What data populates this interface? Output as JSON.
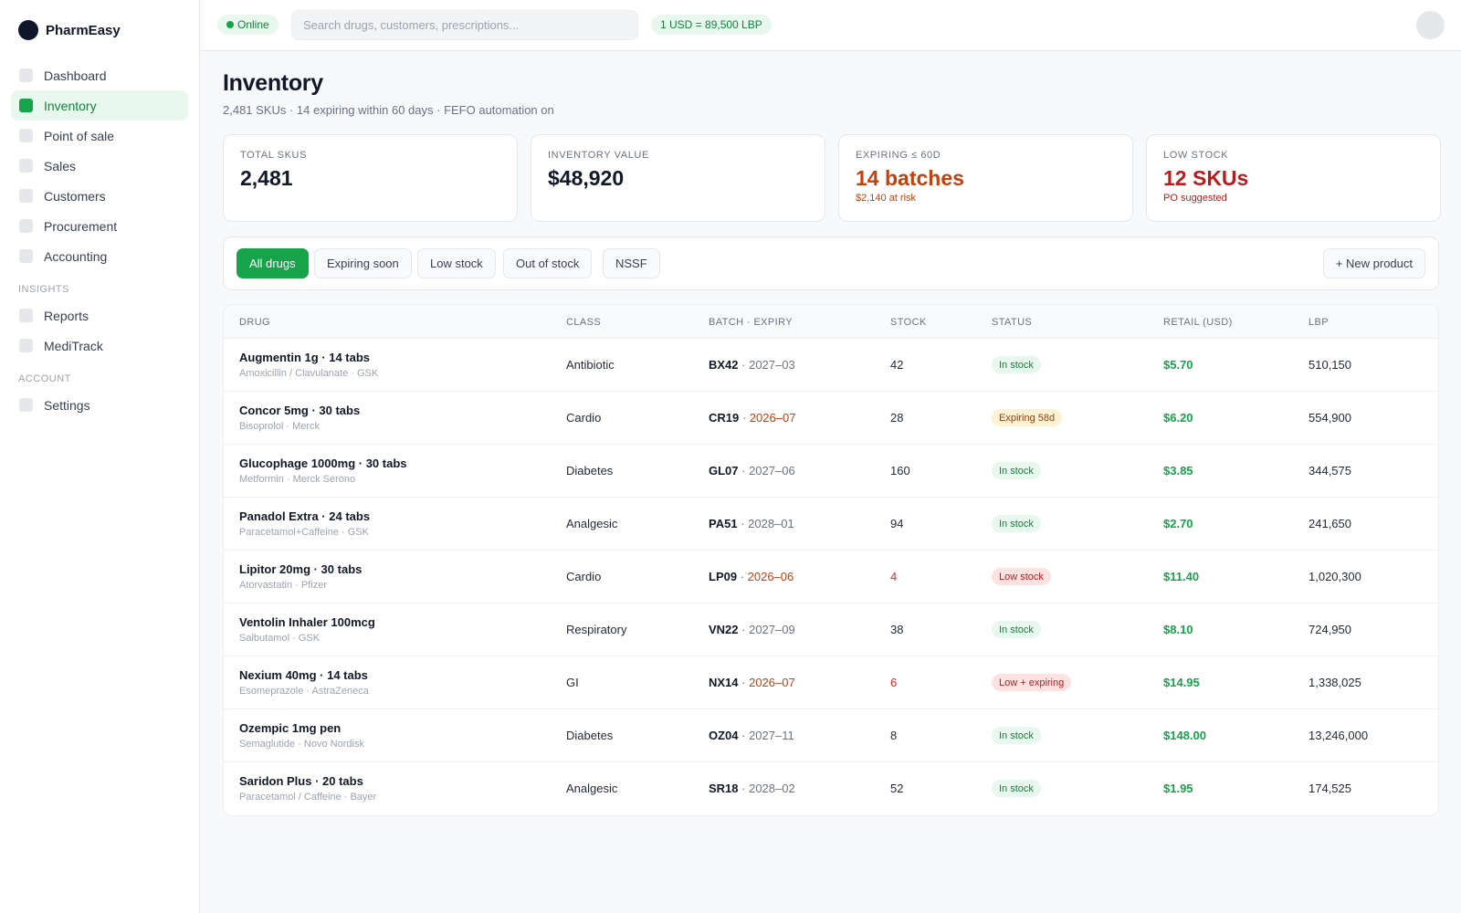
{
  "brand": {
    "name": "PharmEasy"
  },
  "sidebar": {
    "main_items": [
      {
        "label": "Dashboard",
        "active": false
      },
      {
        "label": "Inventory",
        "active": true
      },
      {
        "label": "Point of sale",
        "active": false
      },
      {
        "label": "Sales",
        "active": false
      },
      {
        "label": "Customers",
        "active": false
      },
      {
        "label": "Procurement",
        "active": false
      },
      {
        "label": "Accounting",
        "active": false
      }
    ],
    "insights_title": "INSIGHTS",
    "insights_items": [
      {
        "label": "Reports"
      },
      {
        "label": "MediTrack"
      }
    ],
    "account_title": "ACCOUNT",
    "account_items": [
      {
        "label": "Settings"
      }
    ]
  },
  "topbar": {
    "status": "Online",
    "search_placeholder": "Search drugs, customers, prescriptions...",
    "fx_rate": "1 USD = 89,500 LBP"
  },
  "page": {
    "title": "Inventory",
    "subtitle": "2,481 SKUs · 14 expiring within 60 days · FEFO automation on"
  },
  "kpis": [
    {
      "label": "TOTAL SKUS",
      "value": "2,481",
      "note": "",
      "tone": ""
    },
    {
      "label": "INVENTORY VALUE",
      "value": "$48,920",
      "note": "",
      "tone": ""
    },
    {
      "label": "EXPIRING ≤ 60D",
      "value": "14 batches",
      "note": "$2,140 at risk",
      "tone": "orange"
    },
    {
      "label": "LOW STOCK",
      "value": "12 SKUs",
      "note": "PO suggested",
      "tone": "red"
    }
  ],
  "filters": {
    "chips": [
      {
        "label": "All drugs",
        "active": true
      },
      {
        "label": "Expiring soon",
        "active": false
      },
      {
        "label": "Low stock",
        "active": false
      },
      {
        "label": "Out of stock",
        "active": false
      },
      {
        "label": "NSSF",
        "active": false
      }
    ],
    "new_button": "+ New product"
  },
  "table": {
    "headers": {
      "drug": "DRUG",
      "class": "CLASS",
      "batch": "BATCH · EXPIRY",
      "stock": "STOCK",
      "status": "STATUS",
      "retail": "RETAIL (USD)",
      "lbp": "LBP"
    },
    "rows": [
      {
        "name": "Augmentin 1g · 14 tabs",
        "generic": "Amoxicillin / Clavulanate · GSK",
        "class": "Antibiotic",
        "batch": "BX42",
        "expiry": "2027–03",
        "expiry_warn": false,
        "stock": "42",
        "stock_low": false,
        "status": "In stock",
        "status_tone": "ok",
        "retail": "$5.70",
        "lbp": "510,150"
      },
      {
        "name": "Concor 5mg · 30 tabs",
        "generic": "Bisoprolol · Merck",
        "class": "Cardio",
        "batch": "CR19",
        "expiry": "2026–07",
        "expiry_warn": true,
        "stock": "28",
        "stock_low": false,
        "status": "Expiring 58d",
        "status_tone": "exp",
        "retail": "$6.20",
        "lbp": "554,900"
      },
      {
        "name": "Glucophage 1000mg · 30 tabs",
        "generic": "Metformin · Merck Serono",
        "class": "Diabetes",
        "batch": "GL07",
        "expiry": "2027–06",
        "expiry_warn": false,
        "stock": "160",
        "stock_low": false,
        "status": "In stock",
        "status_tone": "ok",
        "retail": "$3.85",
        "lbp": "344,575"
      },
      {
        "name": "Panadol Extra · 24 tabs",
        "generic": "Paracetamol+Caffeine · GSK",
        "class": "Analgesic",
        "batch": "PA51",
        "expiry": "2028–01",
        "expiry_warn": false,
        "stock": "94",
        "stock_low": false,
        "status": "In stock",
        "status_tone": "ok",
        "retail": "$2.70",
        "lbp": "241,650"
      },
      {
        "name": "Lipitor 20mg · 30 tabs",
        "generic": "Atorvastatin · Pfizer",
        "class": "Cardio",
        "batch": "LP09",
        "expiry": "2026–06",
        "expiry_warn": true,
        "stock": "4",
        "stock_low": true,
        "status": "Low stock",
        "status_tone": "low",
        "retail": "$11.40",
        "lbp": "1,020,300"
      },
      {
        "name": "Ventolin Inhaler 100mcg",
        "generic": "Salbutamol · GSK",
        "class": "Respiratory",
        "batch": "VN22",
        "expiry": "2027–09",
        "expiry_warn": false,
        "stock": "38",
        "stock_low": false,
        "status": "In stock",
        "status_tone": "ok",
        "retail": "$8.10",
        "lbp": "724,950"
      },
      {
        "name": "Nexium 40mg · 14 tabs",
        "generic": "Esomeprazole · AstraZeneca",
        "class": "GI",
        "batch": "NX14",
        "expiry": "2026–07",
        "expiry_warn": true,
        "stock": "6",
        "stock_low": true,
        "status": "Low + expiring",
        "status_tone": "low",
        "retail": "$14.95",
        "lbp": "1,338,025"
      },
      {
        "name": "Ozempic 1mg pen",
        "generic": "Semaglutide · Novo Nordisk",
        "class": "Diabetes",
        "batch": "OZ04",
        "expiry": "2027–11",
        "expiry_warn": false,
        "stock": "8",
        "stock_low": false,
        "status": "In stock",
        "status_tone": "ok",
        "retail": "$148.00",
        "lbp": "13,246,000"
      },
      {
        "name": "Saridon Plus · 20 tabs",
        "generic": "Paracetamol / Caffeine · Bayer",
        "class": "Analgesic",
        "batch": "SR18",
        "expiry": "2028–02",
        "expiry_warn": false,
        "stock": "52",
        "stock_low": false,
        "status": "In stock",
        "status_tone": "ok",
        "retail": "$1.95",
        "lbp": "174,525"
      }
    ]
  },
  "colors": {
    "accent": "#16a34a",
    "warning": "#c2410c",
    "danger": "#b91c1c"
  }
}
